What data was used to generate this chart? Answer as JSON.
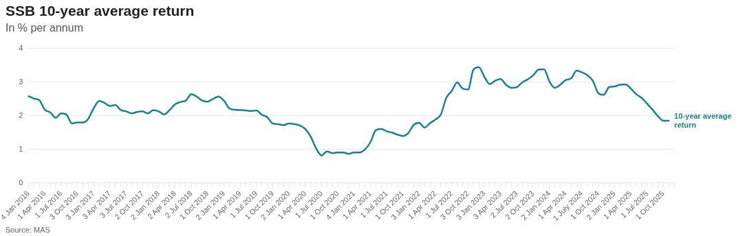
{
  "chart_data": {
    "type": "line",
    "title": "SSB 10-year average return",
    "subtitle": "In % per annum",
    "categories": [
      "4 Jan 2016",
      null,
      null,
      "1 Apr 2016",
      null,
      null,
      "1 Jul 2016",
      null,
      null,
      "3 Oct 2016",
      null,
      null,
      "3 Jan 2017",
      null,
      null,
      "3 Apr 2017",
      null,
      null,
      "3 Jul 2017",
      null,
      null,
      "2 Oct 2017",
      null,
      null,
      "2 Jan 2018",
      null,
      null,
      "2 Apr 2018",
      null,
      null,
      "2 Jul 2018",
      null,
      null,
      "1 Oct 2018",
      null,
      null,
      "2 Jan 2019",
      null,
      null,
      "1 Apr 2019",
      null,
      null,
      "1 Jul 2019",
      null,
      null,
      "1 Oct 2019",
      null,
      null,
      "2 Jan 2020",
      null,
      null,
      "1 Apr 2020",
      null,
      null,
      "1 Jul 2020",
      null,
      null,
      "1 Oct 2020",
      null,
      null,
      "4 Jan 2021",
      null,
      null,
      "1 Apr 2021",
      null,
      null,
      "1 Jul 2021",
      null,
      null,
      "1 Oct 2021",
      null,
      null,
      "3 Jan 2022",
      null,
      null,
      "1 Apr 2022",
      null,
      null,
      "1 Jul 2022",
      null,
      null,
      "3 Oct 2022",
      null,
      null,
      "3 Jan 2023",
      null,
      null,
      "3 Apr 2023",
      null,
      null,
      "2 Jul 2023",
      null,
      null,
      "2 Oct 2023",
      null,
      null,
      "2 Jan 2024",
      null,
      null,
      "1 Apr 2024",
      null,
      null,
      "1 July 2024",
      null,
      null,
      "1 Oct 2024",
      null,
      null,
      "2 Jan 2025",
      null,
      null,
      "1 Apr 2025",
      null,
      null,
      "1 Jul 2025",
      null,
      null,
      "1 Oct 2025",
      null,
      null
    ],
    "series": [
      {
        "name": "10-year average return",
        "color": "#15838d",
        "values": [
          2.58,
          2.51,
          2.46,
          2.18,
          2.1,
          1.94,
          2.07,
          2.03,
          1.77,
          1.8,
          1.8,
          1.91,
          2.22,
          2.44,
          2.38,
          2.29,
          2.32,
          2.17,
          2.13,
          2.07,
          2.11,
          2.13,
          2.07,
          2.17,
          2.13,
          2.04,
          2.17,
          2.34,
          2.41,
          2.45,
          2.64,
          2.57,
          2.45,
          2.42,
          2.5,
          2.57,
          2.45,
          2.22,
          2.18,
          2.17,
          2.16,
          2.14,
          2.16,
          2.03,
          1.96,
          1.77,
          1.75,
          1.72,
          1.77,
          1.75,
          1.71,
          1.61,
          1.38,
          1.03,
          0.82,
          0.94,
          0.89,
          0.91,
          0.91,
          0.87,
          0.91,
          0.91,
          1.0,
          1.21,
          1.57,
          1.61,
          1.54,
          1.5,
          1.44,
          1.4,
          1.49,
          1.73,
          1.79,
          1.65,
          1.78,
          1.89,
          2.04,
          2.53,
          2.74,
          2.99,
          2.81,
          2.78,
          3.37,
          3.44,
          3.16,
          2.94,
          3.04,
          3.09,
          2.92,
          2.83,
          2.85,
          2.99,
          3.08,
          3.2,
          3.37,
          3.38,
          3.02,
          2.83,
          2.92,
          3.06,
          3.11,
          3.34,
          3.29,
          3.2,
          3.04,
          2.67,
          2.62,
          2.85,
          2.87,
          2.92,
          2.93,
          2.81,
          2.64,
          2.53,
          2.36,
          2.18,
          1.99,
          1.85,
          1.85,
          null
        ]
      }
    ],
    "ylim": [
      0,
      4
    ],
    "yticks": [
      0,
      1,
      2,
      3,
      4
    ],
    "grid": "y",
    "legend": false,
    "marker": "none",
    "line_style": "solid",
    "annotations": [
      "Source: MAS"
    ]
  }
}
